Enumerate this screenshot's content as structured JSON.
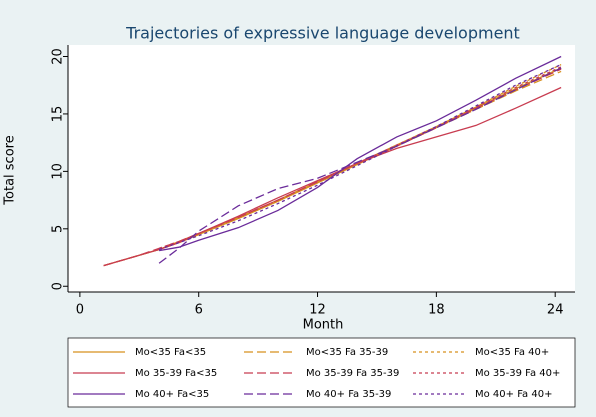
{
  "chart_data": {
    "type": "line",
    "title": "Trajectories of expressive language development",
    "x_label": "Month",
    "y_label": "Total score",
    "x": [
      1.2,
      2,
      3,
      4,
      5,
      6,
      8,
      10,
      12,
      14,
      16,
      18,
      20,
      22,
      24.3
    ],
    "xlim": [
      -0.6,
      25
    ],
    "xticks": [
      0,
      6,
      12,
      18,
      24
    ],
    "ylim": [
      -0.5,
      21
    ],
    "yticks": [
      0,
      5,
      10,
      15,
      20
    ],
    "grid": false,
    "legend_position": "bottom",
    "legend_columns": 3,
    "series": [
      {
        "name": "Mo<35 Fa<35",
        "color": "#d8901e",
        "line_style": "solid",
        "values": [
          1.8,
          2.2,
          2.7,
          3.2,
          3.8,
          4.5,
          5.9,
          7.4,
          9.0,
          10.6,
          12.2,
          13.8,
          15.5,
          17.2,
          19.0
        ]
      },
      {
        "name": "Mo<35 Fa 35-39",
        "color": "#d8901e",
        "line_style": "longdash",
        "values": [
          1.8,
          2.2,
          2.7,
          3.2,
          3.8,
          4.5,
          5.9,
          7.4,
          9.0,
          10.6,
          12.2,
          13.8,
          15.4,
          17.0,
          18.7
        ]
      },
      {
        "name": "Mo<35 Fa 40+",
        "color": "#d8901e",
        "line_style": "shortdash",
        "values": [
          null,
          null,
          2.7,
          3.2,
          3.9,
          4.6,
          6.0,
          7.5,
          9.1,
          10.7,
          12.3,
          13.9,
          15.6,
          17.4,
          19.3
        ]
      },
      {
        "name": "Mo 35-39 Fa<35",
        "color": "#c83c50",
        "line_style": "solid",
        "values": [
          1.8,
          2.2,
          2.7,
          3.2,
          3.8,
          4.6,
          6.1,
          7.7,
          9.2,
          10.7,
          12.0,
          13.0,
          14.0,
          15.5,
          17.3
        ]
      },
      {
        "name": "Mo 35-39 Fa 35-39",
        "color": "#c83c50",
        "line_style": "longdash",
        "values": [
          1.8,
          2.2,
          2.7,
          3.3,
          3.9,
          4.6,
          6.0,
          7.5,
          9.1,
          10.7,
          12.2,
          13.8,
          15.5,
          17.1,
          18.9
        ]
      },
      {
        "name": "Mo 35-39 Fa 40+",
        "color": "#c83c50",
        "line_style": "shortdash",
        "values": [
          null,
          null,
          null,
          3.3,
          3.9,
          4.6,
          6.0,
          7.5,
          9.1,
          10.7,
          12.3,
          13.9,
          15.6,
          17.3,
          19.1
        ]
      },
      {
        "name": "Mo 40+ Fa<35",
        "color": "#6a2b9a",
        "line_style": "solid",
        "values": [
          null,
          null,
          null,
          3.1,
          3.4,
          4.0,
          5.1,
          6.6,
          8.6,
          11.1,
          13.0,
          14.4,
          16.2,
          18.1,
          20.0
        ]
      },
      {
        "name": "Mo 40+ Fa 35-39",
        "color": "#6a2b9a",
        "line_style": "longdash",
        "values": [
          null,
          null,
          null,
          2.0,
          3.3,
          4.8,
          7.0,
          8.5,
          9.4,
          10.8,
          12.2,
          13.8,
          15.4,
          17.1,
          19.0
        ]
      },
      {
        "name": "Mo 40+ Fa 40+",
        "color": "#6a2b9a",
        "line_style": "shortdash",
        "values": [
          null,
          null,
          null,
          3.2,
          3.8,
          4.4,
          5.7,
          7.2,
          8.8,
          10.5,
          12.2,
          13.9,
          15.7,
          17.5,
          19.3
        ]
      }
    ]
  }
}
